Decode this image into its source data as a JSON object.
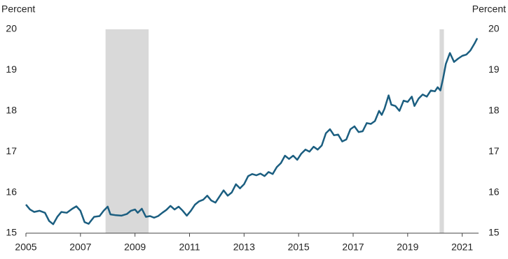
{
  "chart_data": {
    "type": "line",
    "ylabel": "Percent",
    "y2label": "Percent",
    "color": "#1b5e80",
    "shade_color": "#d9d9d9",
    "xlim": [
      2005,
      2021.6
    ],
    "xticks": [
      2005,
      2007,
      2009,
      2011,
      2013,
      2015,
      2017,
      2019,
      2021
    ],
    "ylim": [
      15,
      20
    ],
    "yticks": [
      15,
      16,
      17,
      18,
      19,
      20
    ],
    "y2lim": [
      15,
      20
    ],
    "y2ticks": [
      15,
      16,
      17,
      18,
      19,
      20
    ],
    "shaded_periods": [
      [
        2007.92,
        2009.5
      ],
      [
        2020.17,
        2020.33
      ]
    ],
    "x": [
      2005.0,
      2005.15,
      2005.3,
      2005.5,
      2005.7,
      2005.85,
      2006.0,
      2006.15,
      2006.3,
      2006.5,
      2006.7,
      2006.85,
      2007.0,
      2007.15,
      2007.3,
      2007.5,
      2007.7,
      2007.85,
      2008.0,
      2008.1,
      2008.3,
      2008.5,
      2008.7,
      2008.85,
      2009.0,
      2009.1,
      2009.25,
      2009.4,
      2009.55,
      2009.7,
      2009.85,
      2010.0,
      2010.15,
      2010.3,
      2010.45,
      2010.6,
      2010.75,
      2010.9,
      2011.05,
      2011.2,
      2011.35,
      2011.5,
      2011.65,
      2011.8,
      2011.95,
      2012.1,
      2012.25,
      2012.4,
      2012.55,
      2012.7,
      2012.85,
      2013.0,
      2013.15,
      2013.3,
      2013.45,
      2013.6,
      2013.75,
      2013.9,
      2014.05,
      2014.2,
      2014.35,
      2014.5,
      2014.65,
      2014.8,
      2014.95,
      2015.1,
      2015.25,
      2015.4,
      2015.55,
      2015.7,
      2015.85,
      2016.0,
      2016.15,
      2016.3,
      2016.45,
      2016.6,
      2016.75,
      2016.9,
      2017.05,
      2017.2,
      2017.35,
      2017.5,
      2017.65,
      2017.8,
      2017.95,
      2018.05,
      2018.15,
      2018.3,
      2018.4,
      2018.55,
      2018.7,
      2018.85,
      2019.0,
      2019.15,
      2019.25,
      2019.4,
      2019.55,
      2019.7,
      2019.85,
      2020.0,
      2020.1,
      2020.2,
      2020.3,
      2020.4,
      2020.55,
      2020.7,
      2020.85,
      2021.0,
      2021.15,
      2021.3,
      2021.45,
      2021.55
    ],
    "values": [
      15.7,
      15.58,
      15.52,
      15.55,
      15.5,
      15.3,
      15.22,
      15.4,
      15.52,
      15.5,
      15.6,
      15.66,
      15.55,
      15.27,
      15.23,
      15.4,
      15.42,
      15.55,
      15.65,
      15.46,
      15.44,
      15.43,
      15.47,
      15.55,
      15.58,
      15.5,
      15.6,
      15.4,
      15.42,
      15.38,
      15.42,
      15.5,
      15.57,
      15.67,
      15.58,
      15.65,
      15.55,
      15.43,
      15.55,
      15.7,
      15.78,
      15.82,
      15.92,
      15.8,
      15.75,
      15.9,
      16.05,
      15.92,
      16.0,
      16.2,
      16.1,
      16.2,
      16.4,
      16.45,
      16.42,
      16.46,
      16.4,
      16.5,
      16.45,
      16.62,
      16.72,
      16.9,
      16.82,
      16.9,
      16.8,
      16.95,
      17.05,
      17.0,
      17.12,
      17.05,
      17.15,
      17.45,
      17.55,
      17.4,
      17.42,
      17.25,
      17.3,
      17.55,
      17.62,
      17.48,
      17.5,
      17.7,
      17.68,
      17.75,
      18.0,
      17.9,
      18.05,
      18.38,
      18.15,
      18.12,
      18.0,
      18.25,
      18.22,
      18.35,
      18.12,
      18.3,
      18.4,
      18.35,
      18.5,
      18.48,
      18.58,
      18.5,
      18.8,
      19.15,
      19.42,
      19.2,
      19.28,
      19.35,
      19.38,
      19.48,
      19.65,
      19.78
    ]
  }
}
